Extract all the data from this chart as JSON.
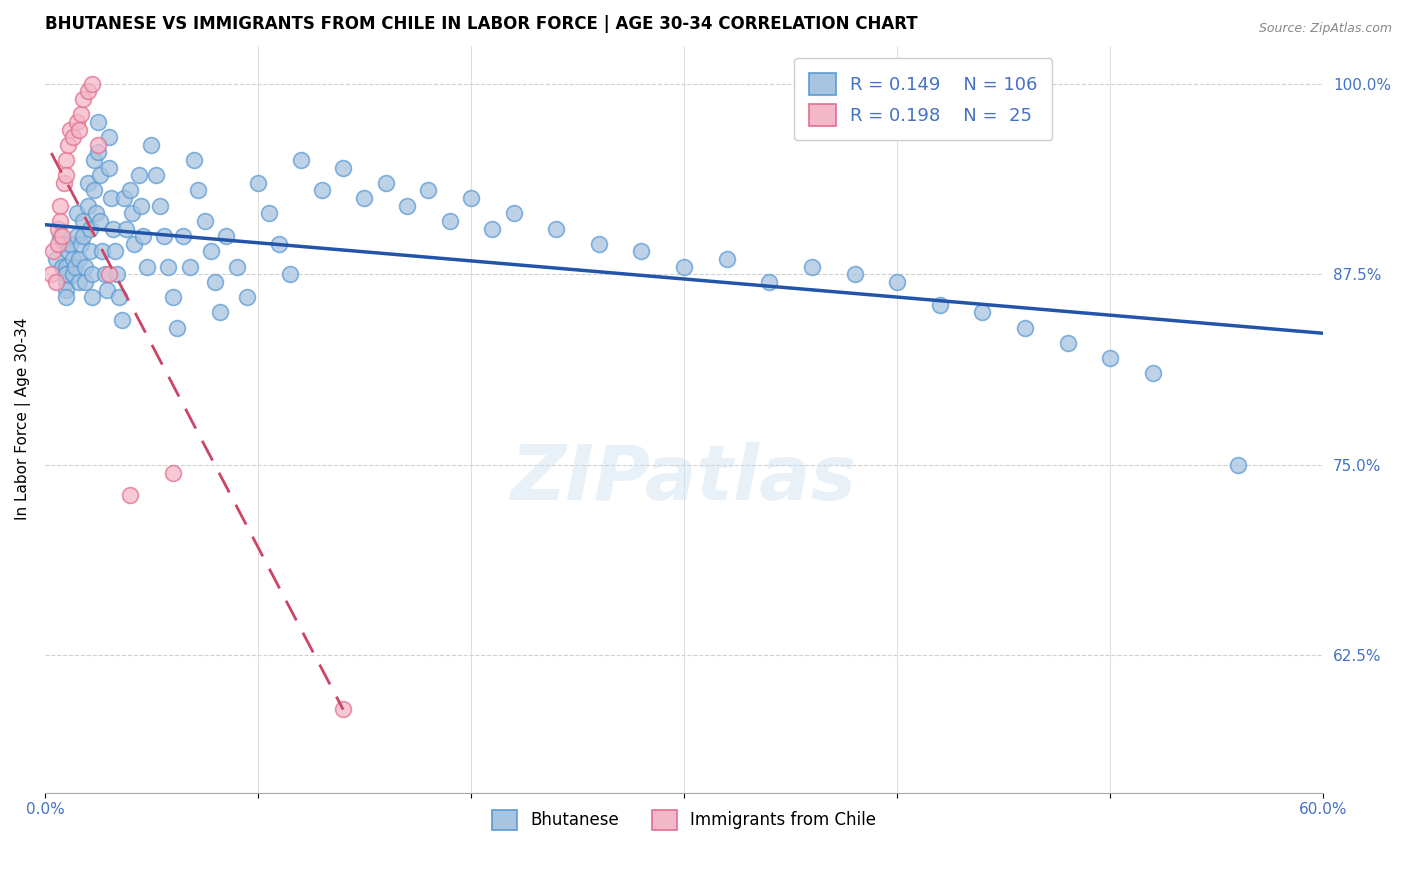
{
  "title": "BHUTANESE VS IMMIGRANTS FROM CHILE IN LABOR FORCE | AGE 30-34 CORRELATION CHART",
  "source": "Source: ZipAtlas.com",
  "ylabel": "In Labor Force | Age 30-34",
  "xlim": [
    0.0,
    0.6
  ],
  "ylim": [
    0.535,
    1.025
  ],
  "xtick_positions": [
    0.0,
    0.1,
    0.2,
    0.3,
    0.4,
    0.5,
    0.6
  ],
  "xticklabels": [
    "0.0%",
    "",
    "",
    "",
    "",
    "",
    "60.0%"
  ],
  "yticks_right": [
    0.625,
    0.75,
    0.875,
    1.0
  ],
  "ytick_right_labels": [
    "62.5%",
    "75.0%",
    "87.5%",
    "100.0%"
  ],
  "blue_color": "#a8c4e0",
  "blue_edge": "#5b9bd5",
  "pink_color": "#f4b8c8",
  "pink_edge": "#e07090",
  "trend_blue": "#2255aa",
  "trend_pink": "#cc4466",
  "axis_label_color": "#4472c4",
  "grid_color": "#d0d0d0",
  "bg_color": "#ffffff",
  "watermark": "ZIPatlas",
  "blue_scatter_x": [
    0.005,
    0.007,
    0.008,
    0.009,
    0.01,
    0.01,
    0.01,
    0.01,
    0.01,
    0.01,
    0.011,
    0.012,
    0.013,
    0.013,
    0.014,
    0.015,
    0.015,
    0.016,
    0.016,
    0.017,
    0.018,
    0.018,
    0.019,
    0.019,
    0.02,
    0.02,
    0.021,
    0.021,
    0.022,
    0.022,
    0.023,
    0.023,
    0.024,
    0.025,
    0.025,
    0.026,
    0.026,
    0.027,
    0.028,
    0.029,
    0.03,
    0.03,
    0.031,
    0.032,
    0.033,
    0.034,
    0.035,
    0.036,
    0.037,
    0.038,
    0.04,
    0.041,
    0.042,
    0.044,
    0.045,
    0.046,
    0.048,
    0.05,
    0.052,
    0.054,
    0.056,
    0.058,
    0.06,
    0.062,
    0.065,
    0.068,
    0.07,
    0.072,
    0.075,
    0.078,
    0.08,
    0.082,
    0.085,
    0.09,
    0.095,
    0.1,
    0.105,
    0.11,
    0.115,
    0.12,
    0.13,
    0.14,
    0.15,
    0.16,
    0.17,
    0.18,
    0.19,
    0.2,
    0.21,
    0.22,
    0.24,
    0.26,
    0.28,
    0.3,
    0.32,
    0.34,
    0.36,
    0.38,
    0.4,
    0.42,
    0.44,
    0.46,
    0.48,
    0.5,
    0.52,
    0.56
  ],
  "blue_scatter_y": [
    0.885,
    0.9,
    0.88,
    0.895,
    0.88,
    0.875,
    0.87,
    0.875,
    0.865,
    0.86,
    0.89,
    0.895,
    0.885,
    0.875,
    0.88,
    0.915,
    0.9,
    0.885,
    0.87,
    0.895,
    0.91,
    0.9,
    0.88,
    0.87,
    0.935,
    0.92,
    0.905,
    0.89,
    0.875,
    0.86,
    0.95,
    0.93,
    0.915,
    0.975,
    0.955,
    0.94,
    0.91,
    0.89,
    0.875,
    0.865,
    0.965,
    0.945,
    0.925,
    0.905,
    0.89,
    0.875,
    0.86,
    0.845,
    0.925,
    0.905,
    0.93,
    0.915,
    0.895,
    0.94,
    0.92,
    0.9,
    0.88,
    0.96,
    0.94,
    0.92,
    0.9,
    0.88,
    0.86,
    0.84,
    0.9,
    0.88,
    0.95,
    0.93,
    0.91,
    0.89,
    0.87,
    0.85,
    0.9,
    0.88,
    0.86,
    0.935,
    0.915,
    0.895,
    0.875,
    0.95,
    0.93,
    0.945,
    0.925,
    0.935,
    0.92,
    0.93,
    0.91,
    0.925,
    0.905,
    0.915,
    0.905,
    0.895,
    0.89,
    0.88,
    0.885,
    0.87,
    0.88,
    0.875,
    0.87,
    0.855,
    0.85,
    0.84,
    0.83,
    0.82,
    0.81,
    0.75
  ],
  "pink_scatter_x": [
    0.003,
    0.004,
    0.005,
    0.006,
    0.006,
    0.007,
    0.007,
    0.008,
    0.009,
    0.01,
    0.01,
    0.011,
    0.012,
    0.013,
    0.015,
    0.016,
    0.017,
    0.018,
    0.02,
    0.022,
    0.025,
    0.03,
    0.04,
    0.06,
    0.14
  ],
  "pink_scatter_y": [
    0.875,
    0.89,
    0.87,
    0.905,
    0.895,
    0.92,
    0.91,
    0.9,
    0.935,
    0.95,
    0.94,
    0.96,
    0.97,
    0.965,
    0.975,
    0.97,
    0.98,
    0.99,
    0.995,
    1.0,
    0.96,
    0.875,
    0.73,
    0.745,
    0.59
  ]
}
